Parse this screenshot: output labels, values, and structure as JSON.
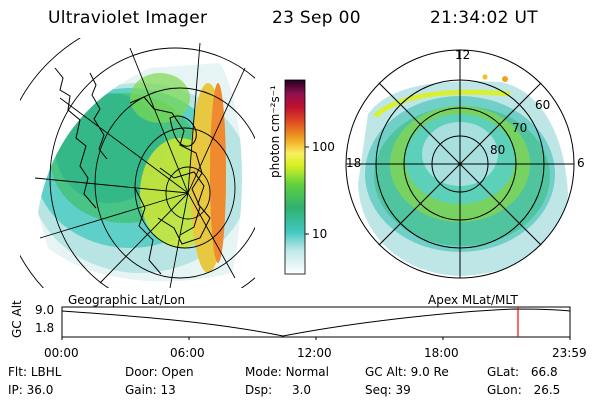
{
  "header": {
    "title": "Ultraviolet Imager",
    "date": "23 Sep 00",
    "time": "21:34:02 UT"
  },
  "colorbar": {
    "label": "photon cm⁻²s⁻¹",
    "ticks": [
      "100",
      "10"
    ]
  },
  "geo_panel": {
    "caption": "Geographic Lat/Lon"
  },
  "polar_panel": {
    "caption": "Apex MLat/MLT",
    "mlt_labels": {
      "top": "12",
      "left": "18",
      "right": "6"
    },
    "lat_labels": [
      "60",
      "70",
      "80"
    ]
  },
  "altitude_plot": {
    "ylabel": "GC Alt",
    "yticks": [
      "9.0",
      "1.8"
    ],
    "xticks": [
      "00:00",
      "06:00",
      "12:00",
      "18:00",
      "23:59"
    ],
    "marker_color": "#ff0000"
  },
  "info": {
    "flt_label": "Flt:",
    "flt_value": "LBHL",
    "door_label": "Door:",
    "door_value": "Open",
    "mode_label": "Mode:",
    "mode_value": "Normal",
    "gcalt_label": "GC Alt:",
    "gcalt_value": "9.0 Re",
    "glat_label": "GLat:",
    "glat_value": "66.8",
    "ip_label": "IP:",
    "ip_value": "36.0",
    "gain_label": "Gain:",
    "gain_value": "13",
    "dsp_label": "Dsp:",
    "dsp_value": "3.0",
    "seq_label": "Seq:",
    "seq_value": "39",
    "glon_label": "GLon:",
    "glon_value": "26.5"
  }
}
